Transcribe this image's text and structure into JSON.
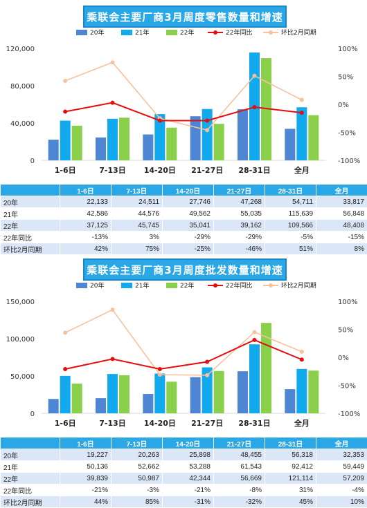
{
  "legend": {
    "s20": "20年",
    "s21": "21年",
    "s22": "22年",
    "yoy": "22年同比",
    "mom": "环比2月同期"
  },
  "colors": {
    "s20": "#4e86d4",
    "s21": "#12aaee",
    "s22": "#8ad04a",
    "yoy": "#e30e0e",
    "mom": "#f8c19e",
    "title_bg": "#2aa7e6"
  },
  "chart_data": [
    {
      "type": "bar",
      "title": "乘联会主要厂商3月周度零售数量和增速",
      "categories": [
        "1-6日",
        "7-13日",
        "14-20日",
        "21-27日",
        "28-31日",
        "全月"
      ],
      "ylim": [
        0,
        120000
      ],
      "y_ticks": [
        "0",
        "40,000",
        "80,000",
        "120,000"
      ],
      "y_tick_values": [
        0,
        40000,
        80000,
        120000
      ],
      "y2lim": [
        -100,
        100
      ],
      "y2_ticks": [
        "-100%",
        "-50%",
        "0%",
        "50%",
        "100%"
      ],
      "y2_tick_values": [
        -100,
        -50,
        0,
        50,
        100
      ],
      "series": [
        {
          "name": "20年",
          "values": [
            22133,
            24511,
            27746,
            47268,
            54711,
            33817
          ]
        },
        {
          "name": "21年",
          "values": [
            42586,
            44576,
            49562,
            55035,
            115639,
            56848
          ]
        },
        {
          "name": "22年",
          "values": [
            37125,
            45745,
            35041,
            39162,
            109566,
            48408
          ]
        }
      ],
      "lines": [
        {
          "name": "22年同比",
          "values": [
            -13,
            3,
            -29,
            -29,
            -5,
            -15
          ]
        },
        {
          "name": "环比2月同期",
          "values": [
            42,
            75,
            -25,
            -46,
            51,
            8
          ]
        }
      ],
      "table": {
        "header": [
          "",
          "1-6日",
          "7-13日",
          "14-20日",
          "21-27日",
          "28-31日",
          "全月"
        ],
        "rows": [
          [
            "20年",
            "22,133",
            "24,511",
            "27,746",
            "47,268",
            "54,711",
            "33,817"
          ],
          [
            "21年",
            "42,586",
            "44,576",
            "49,562",
            "55,035",
            "115,639",
            "56,848"
          ],
          [
            "22年",
            "37,125",
            "45,745",
            "35,041",
            "39,162",
            "109,566",
            "48,408"
          ],
          [
            "22年同比",
            "-13%",
            "3%",
            "-29%",
            "-29%",
            "-5%",
            "-15%"
          ],
          [
            "环比2月同期",
            "42%",
            "75%",
            "-25%",
            "-46%",
            "51%",
            "8%"
          ]
        ]
      }
    },
    {
      "type": "bar",
      "title": "乘联会主要厂商3月周度批发数量和增速",
      "categories": [
        "1-6日",
        "7-13日",
        "14-20日",
        "21-27日",
        "28-31日",
        "全月"
      ],
      "ylim": [
        0,
        150000
      ],
      "y_ticks": [
        "0",
        "50,000",
        "100,000",
        "150,000"
      ],
      "y_tick_values": [
        0,
        50000,
        100000,
        150000
      ],
      "y2lim": [
        -100,
        100
      ],
      "y2_ticks": [
        "-100%",
        "-50%",
        "0%",
        "50%",
        "100%"
      ],
      "y2_tick_values": [
        -100,
        -50,
        0,
        50,
        100
      ],
      "series": [
        {
          "name": "20年",
          "values": [
            19227,
            20263,
            25898,
            48455,
            56318,
            32353
          ]
        },
        {
          "name": "21年",
          "values": [
            50136,
            52662,
            53288,
            61543,
            92412,
            59449
          ]
        },
        {
          "name": "22年",
          "values": [
            39839,
            50987,
            42344,
            56669,
            121114,
            57209
          ]
        }
      ],
      "lines": [
        {
          "name": "22年同比",
          "values": [
            -21,
            -3,
            -21,
            -8,
            31,
            -4
          ]
        },
        {
          "name": "环比2月同期",
          "values": [
            44,
            85,
            -31,
            -32,
            45,
            10
          ]
        }
      ],
      "table": {
        "header": [
          "",
          "1-6日",
          "7-13日",
          "14-20日",
          "21-27日",
          "28-31日",
          "全月"
        ],
        "rows": [
          [
            "20年",
            "19,227",
            "20,263",
            "25,898",
            "48,455",
            "56,318",
            "32,353"
          ],
          [
            "21年",
            "50,136",
            "52,662",
            "53,288",
            "61,543",
            "92,412",
            "59,449"
          ],
          [
            "22年",
            "39,839",
            "50,987",
            "42,344",
            "56,669",
            "121,114",
            "57,209"
          ],
          [
            "22年同比",
            "-21%",
            "-3%",
            "-21%",
            "-8%",
            "31%",
            "-4%"
          ],
          [
            "环比2月同期",
            "44%",
            "85%",
            "-31%",
            "-32%",
            "45%",
            "10%"
          ]
        ]
      }
    }
  ]
}
